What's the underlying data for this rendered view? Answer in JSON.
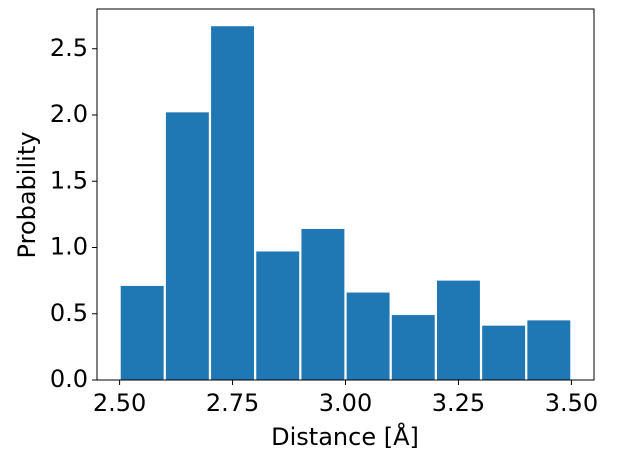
{
  "chart_data": {
    "type": "histogram",
    "xlabel": "Distance [Å]",
    "ylabel": "Probability",
    "bins": [
      2.5,
      2.6,
      2.7,
      2.8,
      2.9,
      3.0,
      3.1,
      3.2,
      3.3,
      3.4,
      3.5
    ],
    "values": [
      0.71,
      2.02,
      2.67,
      0.97,
      1.14,
      0.66,
      0.49,
      0.75,
      0.41,
      0.45
    ],
    "color": "#1f77b4",
    "xlim": [
      2.45,
      3.55
    ],
    "ylim": [
      0,
      2.8
    ],
    "xticks": [
      {
        "value": 2.5,
        "label": "2.50"
      },
      {
        "value": 2.75,
        "label": "2.75"
      },
      {
        "value": 3.0,
        "label": "3.00"
      },
      {
        "value": 3.25,
        "label": "3.25"
      },
      {
        "value": 3.5,
        "label": "3.50"
      }
    ],
    "yticks": [
      {
        "value": 0,
        "label": "0.0"
      },
      {
        "value": 0.5,
        "label": "0.5"
      },
      {
        "value": 1.0,
        "label": "1.0"
      },
      {
        "value": 1.5,
        "label": "1.5"
      },
      {
        "value": 2.0,
        "label": "2.0"
      },
      {
        "value": 2.5,
        "label": "2.5"
      }
    ]
  }
}
